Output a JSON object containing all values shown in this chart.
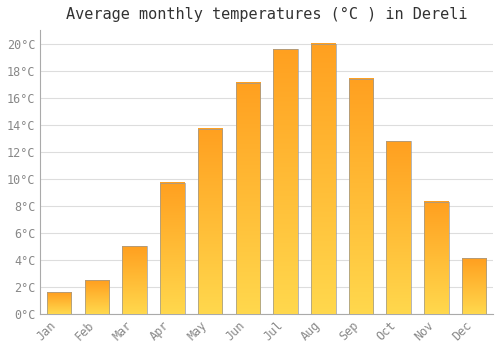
{
  "title": "Average monthly temperatures (°C ) in Dereli",
  "months": [
    "Jan",
    "Feb",
    "Mar",
    "Apr",
    "May",
    "Jun",
    "Jul",
    "Aug",
    "Sep",
    "Oct",
    "Nov",
    "Dec"
  ],
  "temperatures": [
    1.6,
    2.5,
    5.0,
    9.7,
    13.7,
    17.1,
    19.6,
    20.0,
    17.4,
    12.8,
    8.3,
    4.1
  ],
  "bar_color_bottom": "#FFD84D",
  "bar_color_top": "#FFA020",
  "bar_edge_color": "#999999",
  "background_color": "#FFFFFF",
  "grid_color": "#DDDDDD",
  "tick_color": "#888888",
  "title_color": "#333333",
  "ylim": [
    0,
    21
  ],
  "yticks": [
    0,
    2,
    4,
    6,
    8,
    10,
    12,
    14,
    16,
    18,
    20
  ],
  "ytick_labels": [
    "0°C",
    "2°C",
    "4°C",
    "6°C",
    "8°C",
    "10°C",
    "12°C",
    "14°C",
    "16°C",
    "18°C",
    "20°C"
  ],
  "title_fontsize": 11,
  "tick_fontsize": 8.5,
  "bar_width": 0.65
}
